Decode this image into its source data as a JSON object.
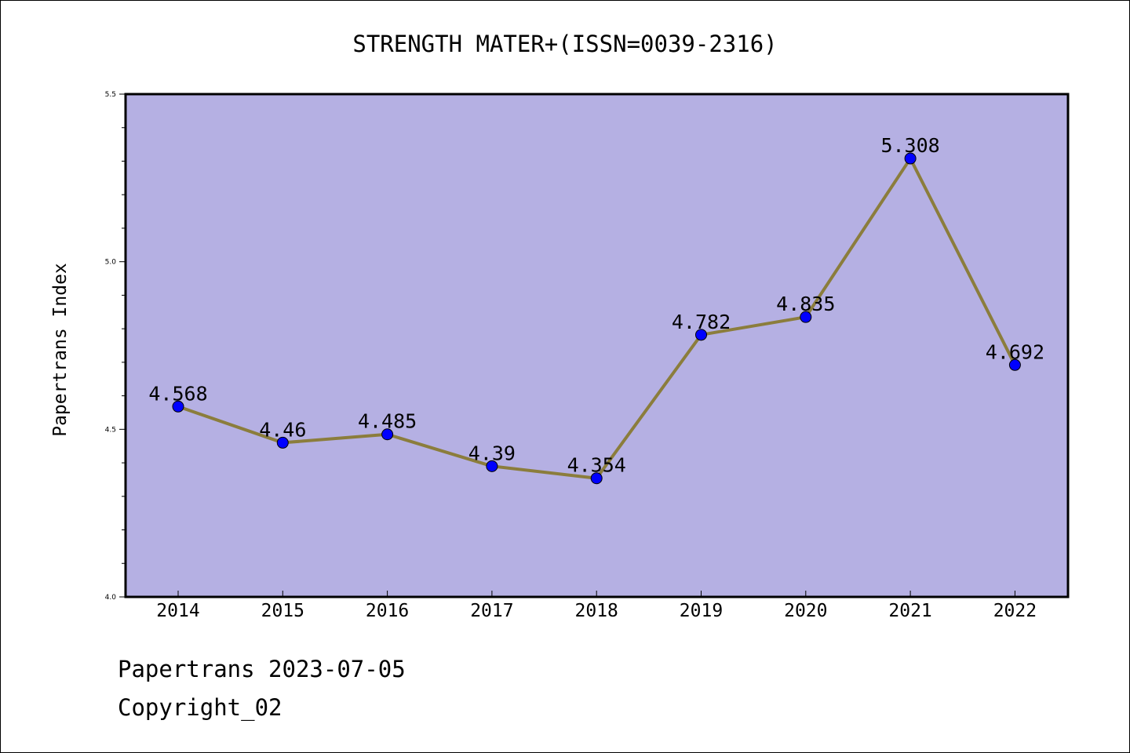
{
  "chart_data": {
    "type": "line",
    "title": "STRENGTH MATER+(ISSN=0039-2316)",
    "xlabel": "",
    "ylabel": "Papertrans Index",
    "categories": [
      "2014",
      "2015",
      "2016",
      "2017",
      "2018",
      "2019",
      "2020",
      "2021",
      "2022"
    ],
    "series": [
      {
        "values": [
          4.568,
          4.46,
          4.485,
          4.39,
          4.354,
          4.782,
          4.835,
          5.308,
          4.692
        ],
        "labels": [
          "4.568",
          "4.46",
          "4.485",
          "4.39",
          "4.354",
          "4.782",
          "4.835",
          "5.308",
          "4.692"
        ]
      }
    ],
    "ylim": [
      4.0,
      5.5
    ],
    "yticks": [
      "4.0",
      "4.5",
      "5.0",
      "5.5"
    ],
    "y_minor_step": 0.1,
    "grid": false,
    "colors": {
      "plot_background": "#b5b0e3",
      "line": "#8b7d3c",
      "marker": "#0000ff"
    }
  },
  "footer": {
    "date_line": "Papertrans 2023-07-05",
    "copyright": "Copyright_02"
  }
}
